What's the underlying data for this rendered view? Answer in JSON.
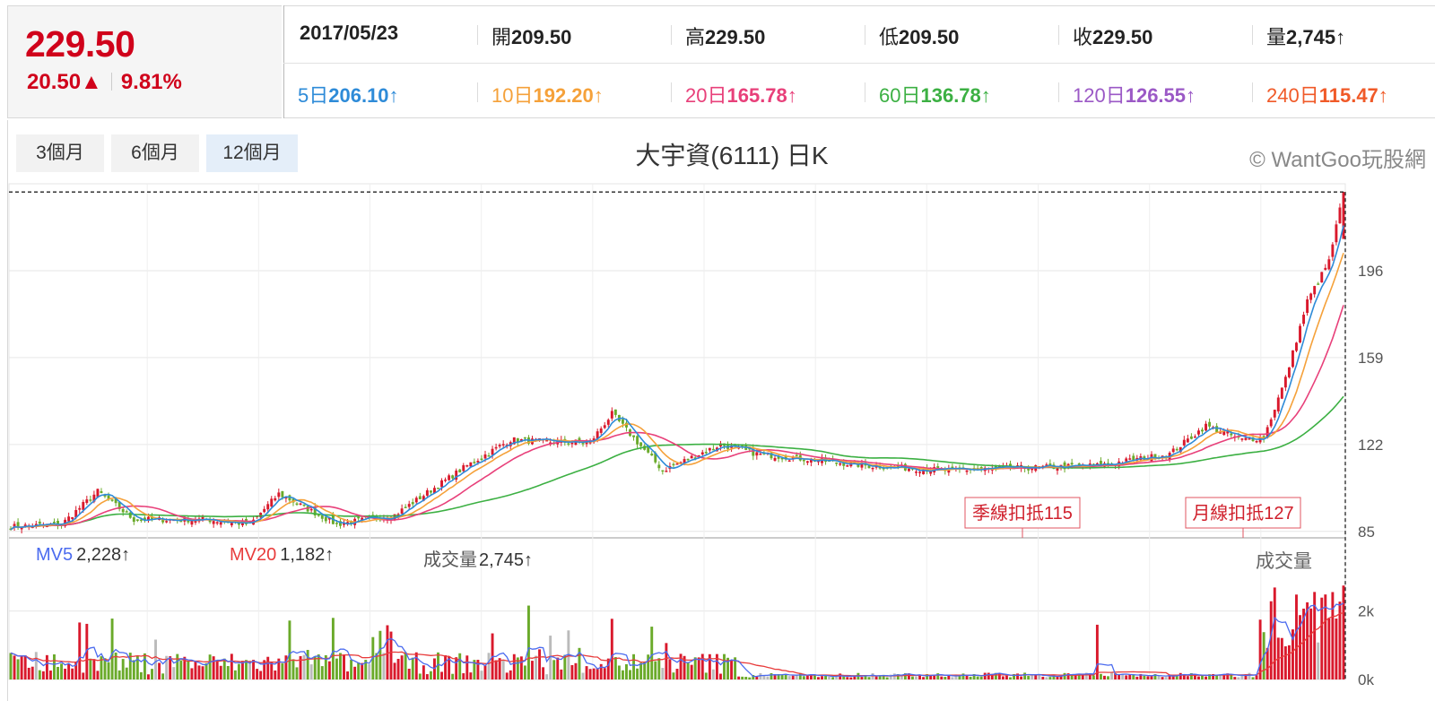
{
  "quote": {
    "price": "229.50",
    "change": "20.50▲",
    "change_pct": "9.81%"
  },
  "info": {
    "date": "2017/05/23",
    "ohlcv": [
      {
        "label": "開",
        "value": "209.50"
      },
      {
        "label": "高",
        "value": "229.50"
      },
      {
        "label": "低",
        "value": "209.50"
      },
      {
        "label": "收",
        "value": "229.50"
      },
      {
        "label": "量",
        "value": "2,745↑"
      }
    ],
    "ma": [
      {
        "label": "5日",
        "value": "206.10↑",
        "color": "#2e8bd8"
      },
      {
        "label": "10日",
        "value": "192.20↑",
        "color": "#f5a13a"
      },
      {
        "label": "20日",
        "value": "165.78↑",
        "color": "#e8407a"
      },
      {
        "label": "60日",
        "value": "136.78↑",
        "color": "#3cb043"
      },
      {
        "label": "120日",
        "value": "126.55↑",
        "color": "#9b59c6"
      },
      {
        "label": "240日",
        "value": "115.47↑",
        "color": "#f05a28"
      }
    ]
  },
  "toolbar": {
    "ranges": [
      {
        "label": "3個月",
        "active": false
      },
      {
        "label": "6個月",
        "active": false
      },
      {
        "label": "12個月",
        "active": true
      }
    ]
  },
  "chart": {
    "title": "大宇資(6111) 日K",
    "watermark": "© WantGoo玩股網"
  },
  "chart_data": {
    "type": "candlestick",
    "title": "大宇資(6111) 日K",
    "price_axis": {
      "ticks": [
        85,
        122,
        159,
        196
      ],
      "labels": [
        "85",
        "122",
        "159",
        "196"
      ],
      "range": [
        83,
        233
      ]
    },
    "volume_axis": {
      "ticks": [
        0,
        2000
      ],
      "labels": [
        "0k",
        "2k"
      ],
      "range": [
        0,
        3300
      ]
    },
    "colors": {
      "up": "#d9192c",
      "down": "#6aaa2a",
      "flat": "#bbbbbb",
      "ma5": "#2e8bd8",
      "ma10": "#f5a13a",
      "ma20": "#e8407a",
      "ma60": "#3cb043",
      "vol_mv5": "#4b6bef",
      "vol_mv20": "#e83b3b"
    },
    "price_keypoints": [
      [
        0,
        87
      ],
      [
        14,
        88
      ],
      [
        24,
        102
      ],
      [
        34,
        90
      ],
      [
        54,
        90
      ],
      [
        66,
        88
      ],
      [
        74,
        101
      ],
      [
        90,
        88
      ],
      [
        106,
        92
      ],
      [
        126,
        113
      ],
      [
        138,
        124
      ],
      [
        150,
        123
      ],
      [
        160,
        123
      ],
      [
        166,
        135
      ],
      [
        180,
        111
      ],
      [
        196,
        122
      ],
      [
        206,
        118
      ],
      [
        218,
        116
      ],
      [
        236,
        113
      ],
      [
        258,
        111
      ],
      [
        280,
        112
      ],
      [
        300,
        113
      ],
      [
        320,
        118
      ],
      [
        330,
        130
      ],
      [
        340,
        124
      ],
      [
        346,
        125
      ],
      [
        352,
        150
      ],
      [
        358,
        183
      ],
      [
        364,
        200
      ],
      [
        368,
        229.5
      ]
    ],
    "annotations": [
      {
        "text": "季線扣抵115",
        "value": 115
      },
      {
        "text": "月線扣抵127",
        "value": 127
      }
    ],
    "last_close": 229.5,
    "volume_legend": {
      "mv5_label": "MV5",
      "mv5": "2,228↑",
      "mv20_label": "MV20",
      "mv20": "1,182↑",
      "vol_label": "成交量",
      "vol": "2,745↑",
      "panel_label": "成交量"
    }
  }
}
